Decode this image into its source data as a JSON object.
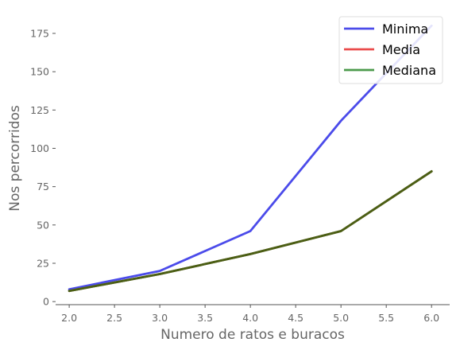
{
  "chart_data": {
    "type": "line",
    "x": [
      2.0,
      3.0,
      4.0,
      5.0,
      6.0
    ],
    "series": [
      {
        "name": "Minima",
        "color": "#4b4bea",
        "values": [
          8,
          20,
          46,
          118,
          180
        ]
      },
      {
        "name": "Media",
        "color": "#ea4b4b",
        "values": [
          7,
          18,
          31,
          46,
          85
        ]
      },
      {
        "name": "Mediana",
        "color": "#4c9a4c",
        "values": [
          7,
          18,
          31,
          46,
          85
        ]
      }
    ],
    "xlabel": "Numero de ratos e buracos",
    "ylabel": "Nos percorridos",
    "xlim": [
      1.85,
      6.2
    ],
    "ylim": [
      -2,
      189
    ],
    "xticks": [
      2.0,
      2.5,
      3.0,
      3.5,
      4.0,
      4.5,
      5.0,
      5.5,
      6.0
    ],
    "xtick_labels": [
      "2.0",
      "2.5",
      "3.0",
      "3.5",
      "4.0",
      "4.5",
      "5.0",
      "5.5",
      "6.0"
    ],
    "yticks": [
      0,
      25,
      50,
      75,
      100,
      125,
      150,
      175
    ],
    "ytick_labels": [
      "0",
      "25",
      "50",
      "75",
      "100",
      "125",
      "150",
      "175"
    ],
    "overlap_color": "#4b5e14",
    "grid": false,
    "legend": "top-right"
  }
}
